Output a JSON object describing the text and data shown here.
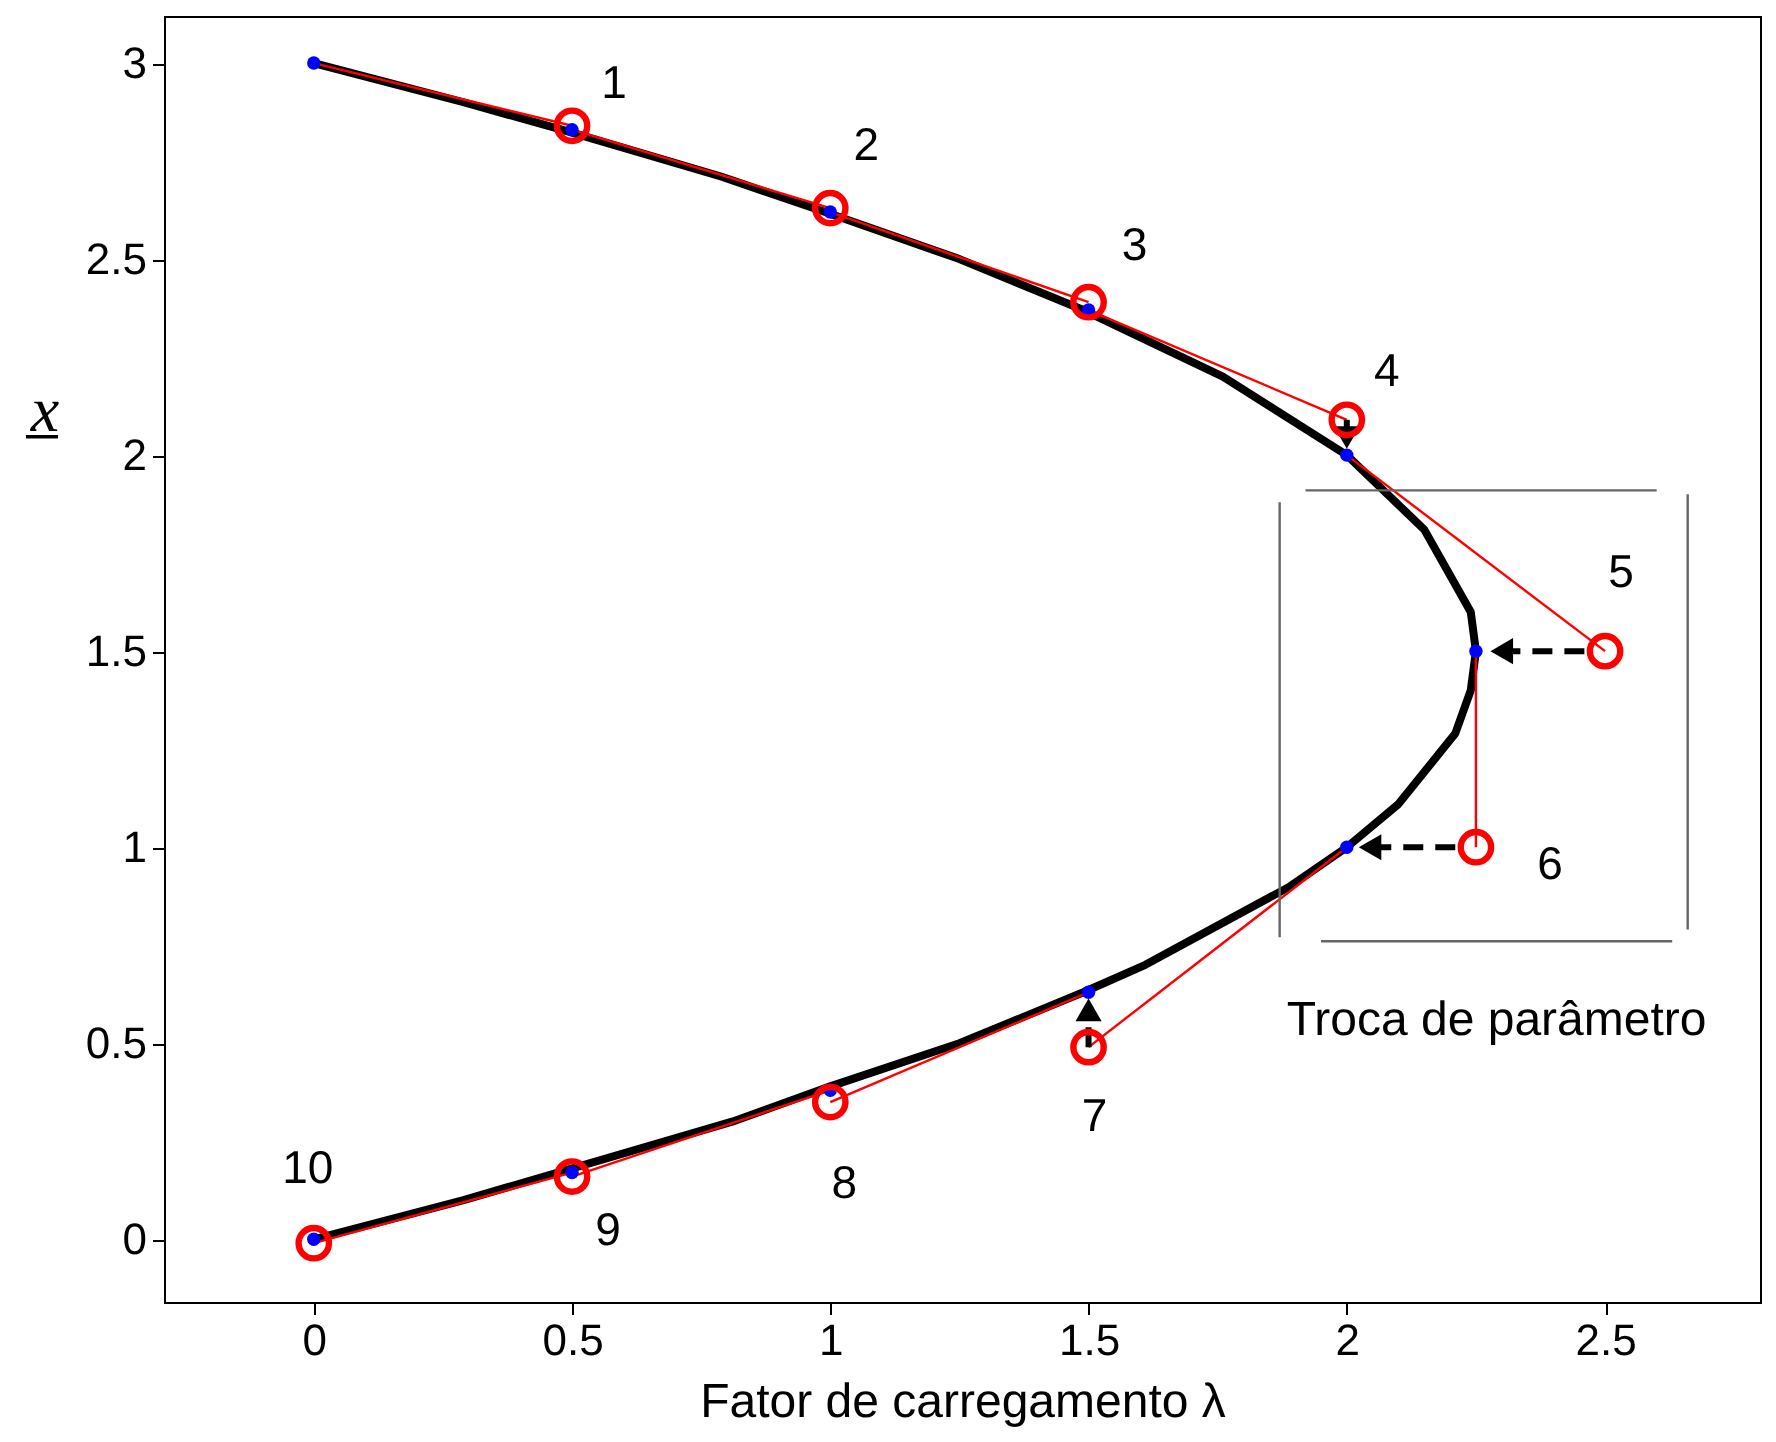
{
  "chart_data": {
    "type": "line",
    "xlabel": "Fator de carregamento λ",
    "ylabel": "x̲",
    "xlim": [
      -0.29,
      2.8
    ],
    "ylim": [
      -0.16,
      3.12
    ],
    "xticks": [
      0,
      0.5,
      1,
      1.5,
      2,
      2.5
    ],
    "yticks": [
      0,
      0.5,
      1,
      1.5,
      2,
      2.5,
      3
    ],
    "series": [
      {
        "color": "#000000",
        "x": [
          0,
          0.29,
          0.81,
          1.0,
          1.25,
          1.49,
          1.61,
          1.89,
          2.0,
          2.1,
          2.21,
          2.24,
          2.25,
          2.24,
          2.15,
          2.0,
          1.76,
          1.49,
          1.25,
          0.99,
          0.79,
          0.48,
          0.29,
          0
        ],
        "values": [
          0,
          0.1,
          0.3,
          0.39,
          0.5,
          0.63,
          0.7,
          0.9,
          1.0,
          1.11,
          1.29,
          1.4,
          1.5,
          1.6,
          1.81,
          2.0,
          2.2,
          2.37,
          2.5,
          2.62,
          2.71,
          2.83,
          2.9,
          3.0
        ]
      },
      {
        "color": "#ff0000",
        "x": [
          0,
          0.5
        ],
        "values": [
          3,
          2.84
        ]
      },
      {
        "color": "#ff0000",
        "x": [
          0.5,
          1
        ],
        "values": [
          2.83,
          2.63
        ]
      },
      {
        "color": "#ff0000",
        "x": [
          1,
          1.5
        ],
        "values": [
          2.62,
          2.39
        ]
      },
      {
        "color": "#ff0000",
        "x": [
          1.5,
          2
        ],
        "values": [
          2.37,
          2.09
        ]
      },
      {
        "color": "#ff0000",
        "x": [
          2,
          2.5
        ],
        "values": [
          2.0,
          1.5
        ]
      },
      {
        "color": "#ff0000",
        "x": [
          2.25,
          2.25
        ],
        "values": [
          1.5,
          1.0
        ]
      },
      {
        "color": "#ff0000",
        "x": [
          2,
          1.5
        ],
        "values": [
          1.0,
          0.49
        ]
      },
      {
        "color": "#ff0000",
        "x": [
          1.5,
          1
        ],
        "values": [
          0.63,
          0.35
        ]
      },
      {
        "color": "#ff0000",
        "x": [
          1,
          0.5
        ],
        "values": [
          0.38,
          0.16
        ]
      },
      {
        "color": "#ff0000",
        "x": [
          0.5,
          0
        ],
        "values": [
          0.17,
          -0.01
        ]
      },
      {
        "color": "#666666",
        "x": [
          1.92,
          2.6
        ],
        "values": [
          1.91,
          1.91
        ]
      },
      {
        "color": "#666666",
        "x": [
          1.87,
          1.87
        ],
        "values": [
          1.88,
          0.77
        ]
      },
      {
        "color": "#666666",
        "x": [
          2.66,
          2.66
        ],
        "values": [
          1.9,
          0.79
        ]
      },
      {
        "color": "#666666",
        "name": "Troca de parâmetro",
        "x": [
          1.95,
          2.63
        ],
        "values": [
          0.76,
          0.76
        ]
      },
      {
        "color": "#000000",
        "line_style": "dashed",
        "x": [
          2.0,
          2.0
        ],
        "values": [
          2.09,
          2.045
        ]
      },
      {
        "color": "#000000",
        "line_style": "dashed",
        "x": [
          2.46,
          2.3
        ],
        "values": [
          1.5,
          1.5
        ]
      },
      {
        "color": "#000000",
        "line_style": "dashed",
        "x": [
          2.21,
          2.045
        ],
        "values": [
          1.0,
          1.0
        ]
      },
      {
        "color": "#000000",
        "line_style": "dashed",
        "x": [
          1.5,
          1.5
        ],
        "values": [
          0.49,
          0.585
        ]
      },
      {
        "type": "scatter",
        "color": "#0000ff",
        "marker": "circle",
        "x": [
          0,
          0.5,
          1,
          1.5,
          2,
          2.25,
          2,
          1.5,
          1,
          0.5,
          0
        ],
        "values": [
          3,
          2.83,
          2.62,
          2.37,
          2.0,
          1.5,
          1.0,
          0.63,
          0.38,
          0.17,
          0
        ]
      },
      {
        "type": "scatter",
        "color": "#ff0000",
        "marker": "circle",
        "x": [
          0.5,
          1,
          1.5,
          2,
          2.5,
          2.25,
          1.5,
          1,
          0.5,
          0
        ],
        "values": [
          2.84,
          2.63,
          2.39,
          2.09,
          1.5,
          1.0,
          0.49,
          0.35,
          0.16,
          -0.01
        ]
      }
    ],
    "annotations": [
      {
        "text": "1",
        "x": 0.5,
        "y": 2.84
      },
      {
        "text": "2",
        "x": 1,
        "y": 2.63
      },
      {
        "text": "3",
        "x": 1.5,
        "y": 2.39
      },
      {
        "text": "4",
        "x": 2,
        "y": 2.09
      },
      {
        "text": "5",
        "x": 2.5,
        "y": 1.5
      },
      {
        "text": "6",
        "x": 2.25,
        "y": 1.0
      },
      {
        "text": "7",
        "x": 1.5,
        "y": 0.49
      },
      {
        "text": "8",
        "x": 1,
        "y": 0.35
      },
      {
        "text": "9",
        "x": 0.5,
        "y": 0.16
      },
      {
        "text": "10",
        "x": 0,
        "y": -0.01
      }
    ]
  }
}
